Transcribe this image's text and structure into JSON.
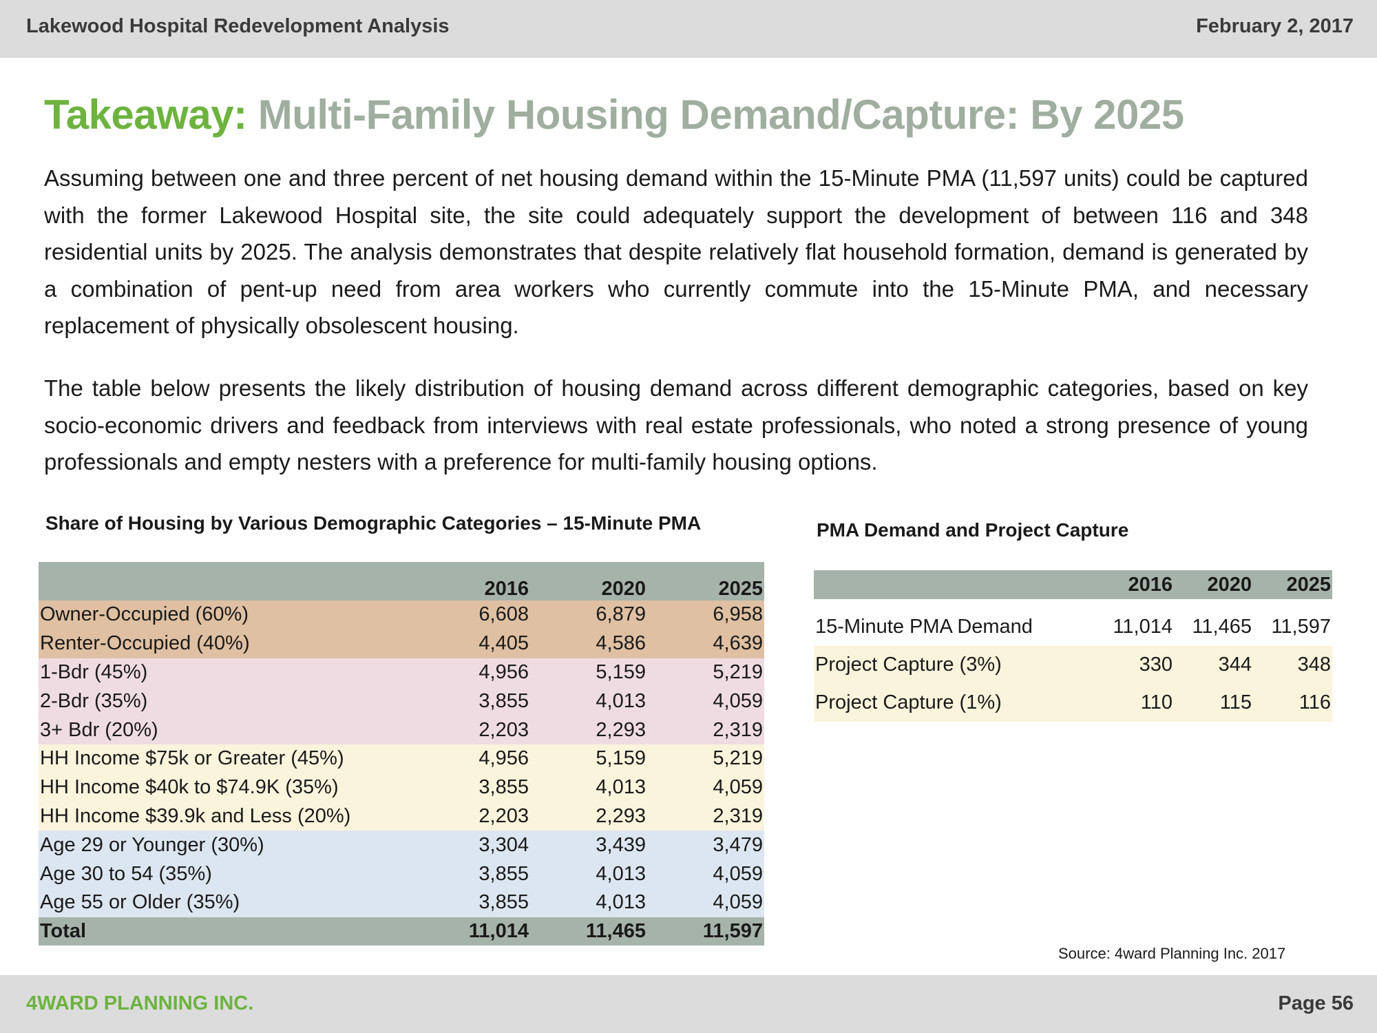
{
  "header": {
    "title": "Lakewood Hospital Redevelopment Analysis",
    "date": "February 2, 2017"
  },
  "heading": {
    "prefix": "Takeaway:",
    "text": "Multi-Family Housing Demand/Capture: By 2025"
  },
  "paragraphs": [
    "Assuming between one and three percent of net housing demand within the 15-Minute PMA (11,597 units) could be captured with the former Lakewood Hospital site, the site could adequately support the development of between 116 and 348 residential units by 2025. The analysis demonstrates that despite relatively flat household formation, demand is generated by a combination of pent-up need from area workers who currently commute into the 15-Minute PMA, and necessary replacement of physically obsolescent housing.",
    "The table below presents the likely distribution of housing demand across different demographic categories, based on key socio-economic drivers and feedback from interviews with real estate professionals, who noted a strong presence of young professionals and empty nesters with a preference for multi-family housing options."
  ],
  "table1": {
    "caption": "Share of Housing by Various Demographic Categories  – 15-Minute PMA",
    "columns": [
      "2016",
      "2020",
      "2025"
    ],
    "rows": [
      {
        "label": "Owner-Occupied (60%)",
        "values": [
          "6,608",
          "6,879",
          "6,958"
        ],
        "group": "own"
      },
      {
        "label": "Renter-Occupied (40%)",
        "values": [
          "4,405",
          "4,586",
          "4,639"
        ],
        "group": "own"
      },
      {
        "label": "1-Bdr (45%)",
        "values": [
          "4,956",
          "5,159",
          "5,219"
        ],
        "group": "bdr"
      },
      {
        "label": "2-Bdr (35%)",
        "values": [
          "3,855",
          "4,013",
          "4,059"
        ],
        "group": "bdr"
      },
      {
        "label": "3+ Bdr (20%)",
        "values": [
          "2,203",
          "2,293",
          "2,319"
        ],
        "group": "bdr"
      },
      {
        "label": "HH Income $75k or Greater (45%)",
        "values": [
          "4,956",
          "5,159",
          "5,219"
        ],
        "group": "inc"
      },
      {
        "label": "HH Income $40k to $74.9K (35%)",
        "values": [
          "3,855",
          "4,013",
          "4,059"
        ],
        "group": "inc"
      },
      {
        "label": "HH Income $39.9k and Less (20%)",
        "values": [
          "2,203",
          "2,293",
          "2,319"
        ],
        "group": "inc"
      },
      {
        "label": "Age 29 or Younger (30%)",
        "values": [
          "3,304",
          "3,439",
          "3,479"
        ],
        "group": "age"
      },
      {
        "label": "Age 30 to 54 (35%)",
        "values": [
          "3,855",
          "4,013",
          "4,059"
        ],
        "group": "age"
      },
      {
        "label": "Age 55 or Older (35%)",
        "values": [
          "3,855",
          "4,013",
          "4,059"
        ],
        "group": "age"
      }
    ],
    "total": {
      "label": "Total",
      "values": [
        "11,014",
        "11,465",
        "11,597"
      ]
    }
  },
  "table2": {
    "caption": "PMA Demand and Project Capture",
    "columns": [
      "2016",
      "2020",
      "2025"
    ],
    "rows": [
      {
        "label": "15-Minute PMA Demand",
        "values": [
          "11,014",
          "11,465",
          "11,597"
        ],
        "highlight": false
      },
      {
        "label": "Project Capture (3%)",
        "values": [
          "330",
          "344",
          "348"
        ],
        "highlight": true
      },
      {
        "label": "Project Capture (1%)",
        "values": [
          "110",
          "115",
          "116"
        ],
        "highlight": true
      }
    ]
  },
  "source": "Source: 4ward Planning Inc. 2017",
  "footer": {
    "company": "4WARD PLANNING INC.",
    "page": "Page 56"
  },
  "colors": {
    "accent_green": "#6db33f",
    "title_gray": "#9fae9f",
    "header_gray": "#a6b3aa",
    "owner": "#dfc0a2",
    "bedroom": "#efdce2",
    "income": "#fbf4dc",
    "age": "#dce6f0"
  }
}
